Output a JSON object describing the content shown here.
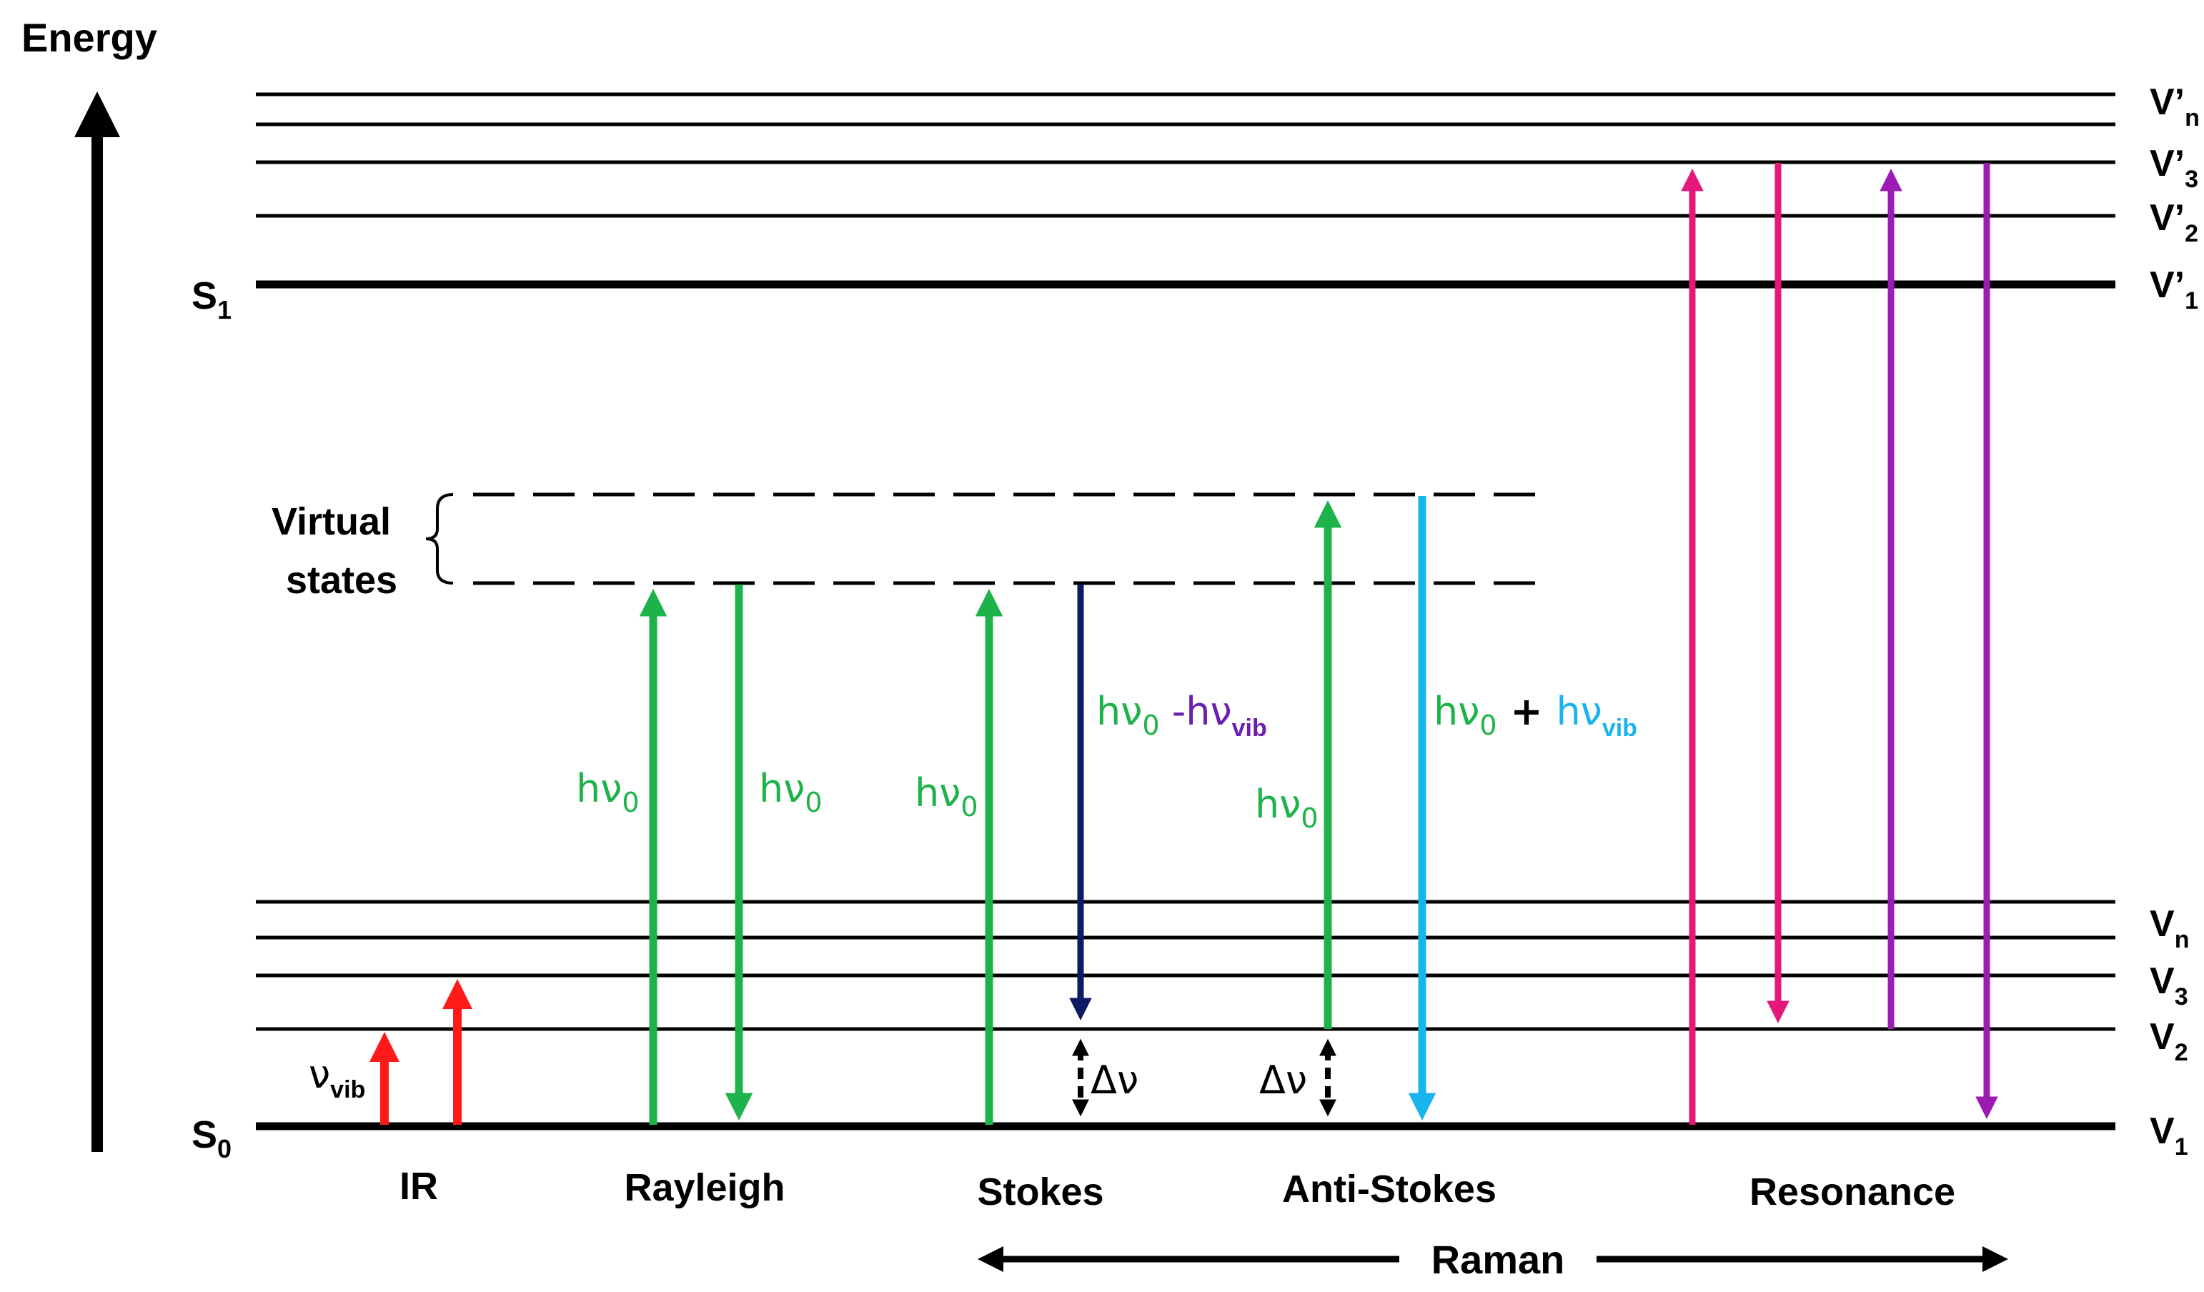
{
  "axis": {
    "label": "Energy"
  },
  "ground_state": {
    "main": "S",
    "sub": "0"
  },
  "excited_state": {
    "main": "S",
    "sub": "1"
  },
  "ground_levels": [
    {
      "main": "V",
      "sub": "n"
    },
    {
      "main": "V",
      "sub": "3"
    },
    {
      "main": "V",
      "sub": "2"
    },
    {
      "main": "V",
      "sub": "1"
    }
  ],
  "excited_levels": [
    {
      "main": "V’",
      "sub": "n"
    },
    {
      "main": "V’",
      "sub": "3"
    },
    {
      "main": "V’",
      "sub": "2"
    },
    {
      "main": "V’",
      "sub": "1"
    }
  ],
  "virtual": {
    "line1": "Virtual",
    "line2": "states"
  },
  "ir": {
    "nu": "ν",
    "sub": "vib"
  },
  "photon": {
    "h": "hν",
    "sub": "0"
  },
  "stokes_label": {
    "part1": "hν",
    "sub1": "0",
    "minus": " -hν",
    "sub2": "vib"
  },
  "antistokes_label": {
    "part1": "hν",
    "sub1": "0",
    "plus": " + ",
    "part2": "hν",
    "sub2": "vib"
  },
  "delta_nu": "Δν",
  "categories": {
    "ir": "IR",
    "rayleigh": "Rayleigh",
    "stokes": "Stokes",
    "anti_stokes": "Anti-Stokes",
    "resonance": "Resonance",
    "raman": "Raman"
  },
  "colors": {
    "ir": "#ff1a1a",
    "green": "#1db34a",
    "stokes_down": "#0d1a66",
    "stokes_minus": "#6a1fb0",
    "antistokes_up": "#19b4ee",
    "resonance_pink": "#e4177a",
    "resonance_purple": "#9b1bb3"
  }
}
